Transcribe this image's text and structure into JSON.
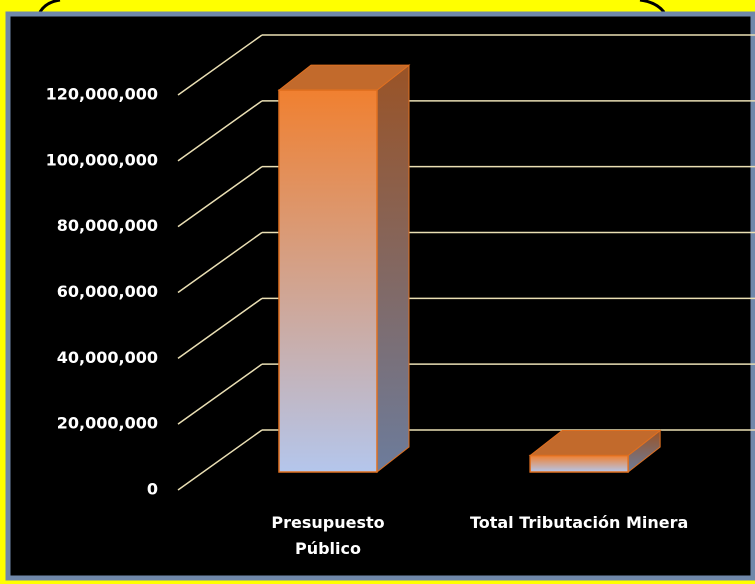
{
  "chart_data": {
    "type": "bar3d",
    "categories": [
      "Presupuesto Público",
      "Total Tributación Minera"
    ],
    "values": [
      116000000,
      5000000
    ],
    "color": "#f08030",
    "ylim": [
      0,
      120000000
    ],
    "yticks": [
      0,
      {
        "value": 20000000,
        "label": "20,000,000"
      },
      {
        "value": 40000000,
        "label": "40,000,000"
      },
      {
        "value": 60000000,
        "label": "60,000,000"
      },
      {
        "value": 80000000,
        "label": "80,000,000"
      },
      {
        "value": 100000000,
        "label": "100,000,000"
      },
      {
        "value": 120000000,
        "label": "120,000,000"
      }
    ],
    "grid": true
  }
}
